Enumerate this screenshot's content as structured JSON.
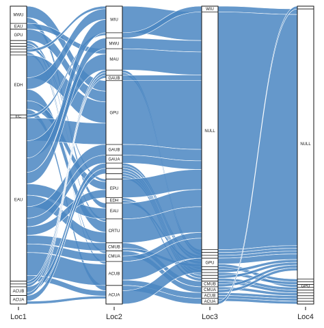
{
  "colors": {
    "flow": "#4a86c2",
    "node_fill": "#ffffff",
    "node_stroke": "#111111"
  },
  "chart_data": {
    "type": "alluvial",
    "title": "",
    "axes": [
      "Loc1",
      "Loc2",
      "Loc3",
      "Loc4"
    ],
    "stages": [
      {
        "name": "Loc1",
        "categories": [
          {
            "name": "MWU",
            "value": 6
          },
          {
            "name": "EAU",
            "value": 2
          },
          {
            "name": "GPU",
            "value": 4
          },
          {
            "name": "",
            "value": 1
          },
          {
            "name": "",
            "value": 1
          },
          {
            "name": "",
            "value": 1
          },
          {
            "name": "",
            "value": 1
          },
          {
            "name": "",
            "value": 1
          },
          {
            "name": "EDH",
            "value": 21
          },
          {
            "name": "EC",
            "value": 1
          },
          {
            "name": "EAU",
            "value": 57
          },
          {
            "name": "",
            "value": 1
          },
          {
            "name": "",
            "value": 1
          },
          {
            "name": "ACUB",
            "value": 3
          },
          {
            "name": "ACUA",
            "value": 3
          }
        ]
      },
      {
        "name": "Loc2",
        "categories": [
          {
            "name": "WIU",
            "value": 10
          },
          {
            "name": "",
            "value": 2
          },
          {
            "name": "MWU",
            "value": 4
          },
          {
            "name": "MAU",
            "value": 8
          },
          {
            "name": "",
            "value": 2
          },
          {
            "name": "GAUB",
            "value": 2
          },
          {
            "name": "GPU",
            "value": 24
          },
          {
            "name": "GAUB",
            "value": 4
          },
          {
            "name": "GAUA",
            "value": 3
          },
          {
            "name": "",
            "value": 2
          },
          {
            "name": "",
            "value": 2
          },
          {
            "name": "",
            "value": 2
          },
          {
            "name": "EPU",
            "value": 7
          },
          {
            "name": "EDH",
            "value": 2
          },
          {
            "name": "EAU",
            "value": 6
          },
          {
            "name": "CRTU",
            "value": 9
          },
          {
            "name": "CMUB",
            "value": 3
          },
          {
            "name": "CMUA",
            "value": 4
          },
          {
            "name": "ACUB",
            "value": 9
          },
          {
            "name": "ACUA",
            "value": 7
          }
        ]
      },
      {
        "name": "Loc3",
        "categories": [
          {
            "name": "WIU",
            "value": 2
          },
          {
            "name": "NULL",
            "value": 83
          },
          {
            "name": "",
            "value": 1
          },
          {
            "name": "",
            "value": 1
          },
          {
            "name": "",
            "value": 1
          },
          {
            "name": "GPU",
            "value": 3
          },
          {
            "name": "",
            "value": 1
          },
          {
            "name": "",
            "value": 1
          },
          {
            "name": "",
            "value": 1
          },
          {
            "name": "",
            "value": 1
          },
          {
            "name": "",
            "value": 1
          },
          {
            "name": "CMUB",
            "value": 2
          },
          {
            "name": "CMUA",
            "value": 2
          },
          {
            "name": "ACUB",
            "value": 2
          },
          {
            "name": "ACUA",
            "value": 2
          }
        ]
      },
      {
        "name": "Loc4",
        "categories": [
          {
            "name": "",
            "value": 1
          },
          {
            "name": "NULL",
            "value": 97
          },
          {
            "name": "",
            "value": 1
          },
          {
            "name": "",
            "value": 1
          },
          {
            "name": "GPU",
            "value": 1
          },
          {
            "name": "",
            "value": 1
          },
          {
            "name": "",
            "value": 1
          },
          {
            "name": "",
            "value": 1
          },
          {
            "name": "",
            "value": 1
          },
          {
            "name": "",
            "value": 1
          },
          {
            "name": "",
            "value": 1
          }
        ]
      }
    ],
    "flows": [
      {
        "from": [
          0,
          0
        ],
        "to": [
          1,
          6
        ],
        "value": 4
      },
      {
        "from": [
          0,
          0
        ],
        "to": [
          1,
          14
        ],
        "value": 2
      },
      {
        "from": [
          0,
          1
        ],
        "to": [
          1,
          3
        ],
        "value": 2
      },
      {
        "from": [
          0,
          2
        ],
        "to": [
          1,
          6
        ],
        "value": 4
      },
      {
        "from": [
          0,
          3
        ],
        "to": [
          1,
          15
        ],
        "value": 1
      },
      {
        "from": [
          0,
          4
        ],
        "to": [
          1,
          18
        ],
        "value": 1
      },
      {
        "from": [
          0,
          5
        ],
        "to": [
          1,
          12
        ],
        "value": 1
      },
      {
        "from": [
          0,
          6
        ],
        "to": [
          1,
          0
        ],
        "value": 1
      },
      {
        "from": [
          0,
          7
        ],
        "to": [
          1,
          17
        ],
        "value": 1
      },
      {
        "from": [
          0,
          8
        ],
        "to": [
          1,
          6
        ],
        "value": 8
      },
      {
        "from": [
          0,
          8
        ],
        "to": [
          1,
          0
        ],
        "value": 4
      },
      {
        "from": [
          0,
          8
        ],
        "to": [
          1,
          15
        ],
        "value": 4
      },
      {
        "from": [
          0,
          8
        ],
        "to": [
          1,
          12
        ],
        "value": 3
      },
      {
        "from": [
          0,
          8
        ],
        "to": [
          1,
          19
        ],
        "value": 2
      },
      {
        "from": [
          0,
          9
        ],
        "to": [
          1,
          1
        ],
        "value": 1
      },
      {
        "from": [
          0,
          10
        ],
        "to": [
          1,
          6
        ],
        "value": 8
      },
      {
        "from": [
          0,
          10
        ],
        "to": [
          1,
          3
        ],
        "value": 6
      },
      {
        "from": [
          0,
          10
        ],
        "to": [
          1,
          0
        ],
        "value": 5
      },
      {
        "from": [
          0,
          10
        ],
        "to": [
          1,
          2
        ],
        "value": 4
      },
      {
        "from": [
          0,
          10
        ],
        "to": [
          1,
          14
        ],
        "value": 4
      },
      {
        "from": [
          0,
          10
        ],
        "to": [
          1,
          15
        ],
        "value": 4
      },
      {
        "from": [
          0,
          10
        ],
        "to": [
          1,
          7
        ],
        "value": 4
      },
      {
        "from": [
          0,
          10
        ],
        "to": [
          1,
          8
        ],
        "value": 3
      },
      {
        "from": [
          0,
          10
        ],
        "to": [
          1,
          12
        ],
        "value": 3
      },
      {
        "from": [
          0,
          10
        ],
        "to": [
          1,
          16
        ],
        "value": 3
      },
      {
        "from": [
          0,
          10
        ],
        "to": [
          1,
          17
        ],
        "value": 3
      },
      {
        "from": [
          0,
          10
        ],
        "to": [
          1,
          18
        ],
        "value": 8
      },
      {
        "from": [
          0,
          10
        ],
        "to": [
          1,
          19
        ],
        "value": 2
      },
      {
        "from": [
          0,
          11
        ],
        "to": [
          1,
          4
        ],
        "value": 1
      },
      {
        "from": [
          0,
          12
        ],
        "to": [
          1,
          5
        ],
        "value": 1
      },
      {
        "from": [
          0,
          13
        ],
        "to": [
          1,
          9
        ],
        "value": 2
      },
      {
        "from": [
          0,
          13
        ],
        "to": [
          1,
          4
        ],
        "value": 1
      },
      {
        "from": [
          0,
          14
        ],
        "to": [
          1,
          10
        ],
        "value": 2
      },
      {
        "from": [
          0,
          14
        ],
        "to": [
          1,
          19
        ],
        "value": 1
      },
      {
        "from": [
          1,
          0
        ],
        "to": [
          2,
          1
        ],
        "value": 10
      },
      {
        "from": [
          1,
          1
        ],
        "to": [
          2,
          0
        ],
        "value": 2
      },
      {
        "from": [
          1,
          2
        ],
        "to": [
          2,
          1
        ],
        "value": 4
      },
      {
        "from": [
          1,
          3
        ],
        "to": [
          2,
          1
        ],
        "value": 8
      },
      {
        "from": [
          1,
          4
        ],
        "to": [
          2,
          2
        ],
        "value": 1
      },
      {
        "from": [
          1,
          4
        ],
        "to": [
          2,
          3
        ],
        "value": 1
      },
      {
        "from": [
          1,
          5
        ],
        "to": [
          2,
          1
        ],
        "value": 2
      },
      {
        "from": [
          1,
          6
        ],
        "to": [
          2,
          1
        ],
        "value": 24
      },
      {
        "from": [
          1,
          7
        ],
        "to": [
          2,
          1
        ],
        "value": 4
      },
      {
        "from": [
          1,
          8
        ],
        "to": [
          2,
          1
        ],
        "value": 3
      },
      {
        "from": [
          1,
          9
        ],
        "to": [
          2,
          4
        ],
        "value": 1
      },
      {
        "from": [
          1,
          9
        ],
        "to": [
          2,
          5
        ],
        "value": 1
      },
      {
        "from": [
          1,
          10
        ],
        "to": [
          2,
          6
        ],
        "value": 1
      },
      {
        "from": [
          1,
          10
        ],
        "to": [
          2,
          7
        ],
        "value": 1
      },
      {
        "from": [
          1,
          11
        ],
        "to": [
          2,
          8
        ],
        "value": 1
      },
      {
        "from": [
          1,
          11
        ],
        "to": [
          2,
          9
        ],
        "value": 1
      },
      {
        "from": [
          1,
          12
        ],
        "to": [
          2,
          1
        ],
        "value": 7
      },
      {
        "from": [
          1,
          13
        ],
        "to": [
          2,
          10
        ],
        "value": 1
      },
      {
        "from": [
          1,
          13
        ],
        "to": [
          2,
          5
        ],
        "value": 1
      },
      {
        "from": [
          1,
          14
        ],
        "to": [
          2,
          1
        ],
        "value": 6
      },
      {
        "from": [
          1,
          15
        ],
        "to": [
          2,
          1
        ],
        "value": 9
      },
      {
        "from": [
          1,
          16
        ],
        "to": [
          2,
          11
        ],
        "value": 2
      },
      {
        "from": [
          1,
          16
        ],
        "to": [
          2,
          5
        ],
        "value": 1
      },
      {
        "from": [
          1,
          17
        ],
        "to": [
          2,
          12
        ],
        "value": 2
      },
      {
        "from": [
          1,
          17
        ],
        "to": [
          2,
          1
        ],
        "value": 2
      },
      {
        "from": [
          1,
          18
        ],
        "to": [
          2,
          1
        ],
        "value": 7
      },
      {
        "from": [
          1,
          18
        ],
        "to": [
          2,
          13
        ],
        "value": 2
      },
      {
        "from": [
          1,
          19
        ],
        "to": [
          2,
          14
        ],
        "value": 2
      },
      {
        "from": [
          1,
          19
        ],
        "to": [
          2,
          1
        ],
        "value": 5
      },
      {
        "from": [
          2,
          0
        ],
        "to": [
          3,
          1
        ],
        "value": 2
      },
      {
        "from": [
          2,
          1
        ],
        "to": [
          3,
          1
        ],
        "value": 83
      },
      {
        "from": [
          2,
          2
        ],
        "to": [
          3,
          1
        ],
        "value": 1
      },
      {
        "from": [
          2,
          3
        ],
        "to": [
          3,
          1
        ],
        "value": 1
      },
      {
        "from": [
          2,
          4
        ],
        "to": [
          3,
          1
        ],
        "value": 1
      },
      {
        "from": [
          2,
          5
        ],
        "to": [
          3,
          1
        ],
        "value": 2
      },
      {
        "from": [
          2,
          5
        ],
        "to": [
          3,
          4
        ],
        "value": 1
      },
      {
        "from": [
          2,
          6
        ],
        "to": [
          3,
          2
        ],
        "value": 1
      },
      {
        "from": [
          2,
          7
        ],
        "to": [
          3,
          1
        ],
        "value": 1
      },
      {
        "from": [
          2,
          8
        ],
        "to": [
          3,
          3
        ],
        "value": 1
      },
      {
        "from": [
          2,
          9
        ],
        "to": [
          3,
          1
        ],
        "value": 1
      },
      {
        "from": [
          2,
          10
        ],
        "to": [
          3,
          5
        ],
        "value": 1
      },
      {
        "from": [
          2,
          11
        ],
        "to": [
          3,
          6
        ],
        "value": 1
      },
      {
        "from": [
          2,
          11
        ],
        "to": [
          3,
          1
        ],
        "value": 1
      },
      {
        "from": [
          2,
          12
        ],
        "to": [
          3,
          7
        ],
        "value": 1
      },
      {
        "from": [
          2,
          12
        ],
        "to": [
          3,
          1
        ],
        "value": 1
      },
      {
        "from": [
          2,
          13
        ],
        "to": [
          3,
          8
        ],
        "value": 1
      },
      {
        "from": [
          2,
          13
        ],
        "to": [
          3,
          9
        ],
        "value": 1
      },
      {
        "from": [
          2,
          14
        ],
        "to": [
          3,
          10
        ],
        "value": 1
      },
      {
        "from": [
          2,
          14
        ],
        "to": [
          3,
          0
        ],
        "value": 1
      }
    ]
  }
}
